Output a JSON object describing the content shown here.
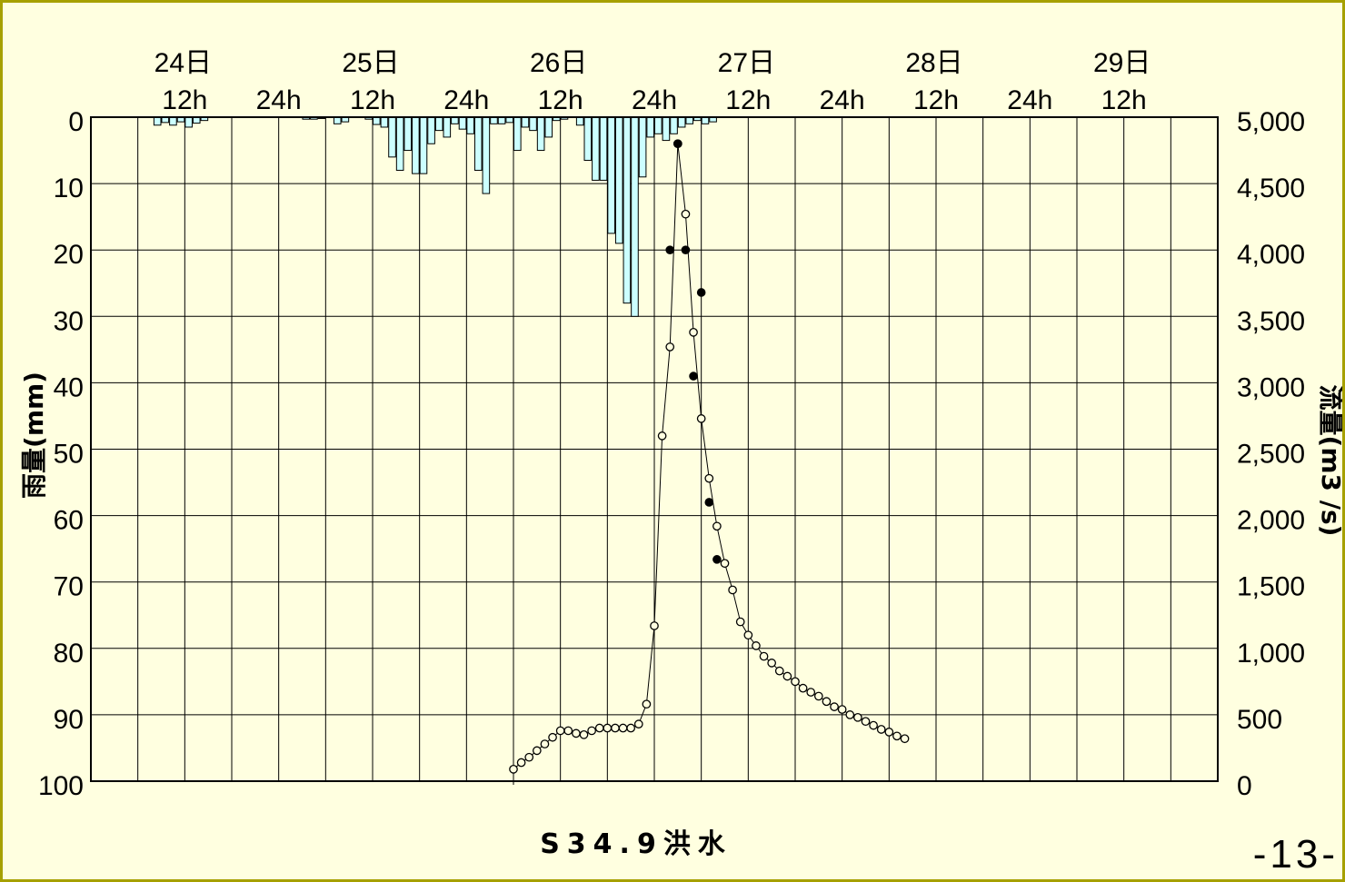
{
  "chart_data": {
    "type": "bar+line+scatter",
    "title": "",
    "caption": "S34.9洪水",
    "page_number": "-13-",
    "left_axis": {
      "label": "雨量(mm)",
      "ticks": [
        "0",
        "10",
        "20",
        "30",
        "40",
        "50",
        "60",
        "70",
        "80",
        "90",
        "100"
      ],
      "range": [
        0,
        100
      ],
      "inverted": true
    },
    "right_axis": {
      "label": "流量(m3 /s)",
      "ticks": [
        "0",
        "500",
        "1,000",
        "1,500",
        "2,000",
        "2,500",
        "3,000",
        "3,500",
        "4,000",
        "4,500",
        "5,000"
      ],
      "range": [
        0,
        5000
      ]
    },
    "x_axis": {
      "unit": "hour",
      "range": [
        0,
        144
      ],
      "day_labels": [
        {
          "label": "24日",
          "hour": 12
        },
        {
          "label": "25日",
          "hour": 36
        },
        {
          "label": "26日",
          "hour": 60
        },
        {
          "label": "27日",
          "hour": 84
        },
        {
          "label": "28日",
          "hour": 108
        },
        {
          "label": "29日",
          "hour": 132
        }
      ],
      "hour_labels": [
        {
          "label": "12h",
          "hour": 12
        },
        {
          "label": "24h",
          "hour": 24
        },
        {
          "label": "12h",
          "hour": 36
        },
        {
          "label": "24h",
          "hour": 48
        },
        {
          "label": "12h",
          "hour": 60
        },
        {
          "label": "24h",
          "hour": 72
        },
        {
          "label": "12h",
          "hour": 84
        },
        {
          "label": "24h",
          "hour": 96
        },
        {
          "label": "12h",
          "hour": 108
        },
        {
          "label": "24h",
          "hour": 120
        },
        {
          "label": "12h",
          "hour": 132
        }
      ]
    },
    "grid": true,
    "rainfall": {
      "color": "#CCFFFF",
      "bars": [
        {
          "hour": 9,
          "value": 1.2
        },
        {
          "hour": 10,
          "value": 0.8
        },
        {
          "hour": 11,
          "value": 1.2
        },
        {
          "hour": 12,
          "value": 0.7
        },
        {
          "hour": 13,
          "value": 1.5
        },
        {
          "hour": 14,
          "value": 0.9
        },
        {
          "hour": 15,
          "value": 0.5
        },
        {
          "hour": 28,
          "value": 0.3
        },
        {
          "hour": 29,
          "value": 0.3
        },
        {
          "hour": 30,
          "value": 0.2
        },
        {
          "hour": 32,
          "value": 1.0
        },
        {
          "hour": 33,
          "value": 0.7
        },
        {
          "hour": 36,
          "value": 0.3
        },
        {
          "hour": 37,
          "value": 1.1
        },
        {
          "hour": 38,
          "value": 1.5
        },
        {
          "hour": 39,
          "value": 6.0
        },
        {
          "hour": 40,
          "value": 8.0
        },
        {
          "hour": 41,
          "value": 5.0
        },
        {
          "hour": 42,
          "value": 8.5
        },
        {
          "hour": 43,
          "value": 8.5
        },
        {
          "hour": 44,
          "value": 4.0
        },
        {
          "hour": 45,
          "value": 2.0
        },
        {
          "hour": 46,
          "value": 3.0
        },
        {
          "hour": 47,
          "value": 1.0
        },
        {
          "hour": 48,
          "value": 1.8
        },
        {
          "hour": 49,
          "value": 2.5
        },
        {
          "hour": 50,
          "value": 8.0
        },
        {
          "hour": 51,
          "value": 11.5
        },
        {
          "hour": 52,
          "value": 1.0
        },
        {
          "hour": 53,
          "value": 1.0
        },
        {
          "hour": 54,
          "value": 0.8
        },
        {
          "hour": 55,
          "value": 5.0
        },
        {
          "hour": 56,
          "value": 1.5
        },
        {
          "hour": 57,
          "value": 2.0
        },
        {
          "hour": 58,
          "value": 5.0
        },
        {
          "hour": 59,
          "value": 3.0
        },
        {
          "hour": 60,
          "value": 0.5
        },
        {
          "hour": 61,
          "value": 0.3
        },
        {
          "hour": 63,
          "value": 1.2
        },
        {
          "hour": 64,
          "value": 6.5
        },
        {
          "hour": 65,
          "value": 9.5
        },
        {
          "hour": 66,
          "value": 9.5
        },
        {
          "hour": 67,
          "value": 17.5
        },
        {
          "hour": 68,
          "value": 19.0
        },
        {
          "hour": 69,
          "value": 28.0
        },
        {
          "hour": 70,
          "value": 30.0
        },
        {
          "hour": 71,
          "value": 9.0
        },
        {
          "hour": 72,
          "value": 3.0
        },
        {
          "hour": 73,
          "value": 2.5
        },
        {
          "hour": 74,
          "value": 3.5
        },
        {
          "hour": 75,
          "value": 2.5
        },
        {
          "hour": 76,
          "value": 1.5
        },
        {
          "hour": 77,
          "value": 1.0
        },
        {
          "hour": 78,
          "value": 0.5
        },
        {
          "hour": 79,
          "value": 1.0
        },
        {
          "hour": 80,
          "value": 0.7
        }
      ]
    },
    "discharge_calculated": {
      "marker": "open-circle",
      "points": [
        [
          54,
          90
        ],
        [
          55,
          140
        ],
        [
          56,
          180
        ],
        [
          57,
          230
        ],
        [
          58,
          280
        ],
        [
          59,
          330
        ],
        [
          60,
          380
        ],
        [
          61,
          380
        ],
        [
          62,
          360
        ],
        [
          63,
          350
        ],
        [
          64,
          380
        ],
        [
          65,
          400
        ],
        [
          66,
          400
        ],
        [
          67,
          400
        ],
        [
          68,
          400
        ],
        [
          69,
          400
        ],
        [
          70,
          430
        ],
        [
          71,
          580
        ],
        [
          72,
          1170
        ],
        [
          73,
          2600
        ],
        [
          74,
          3270
        ],
        [
          75,
          4800
        ],
        [
          76,
          4270
        ],
        [
          77,
          3380
        ],
        [
          78,
          2730
        ],
        [
          79,
          2280
        ],
        [
          80,
          1920
        ],
        [
          81,
          1640
        ],
        [
          82,
          1440
        ],
        [
          83,
          1200
        ],
        [
          84,
          1100
        ],
        [
          85,
          1020
        ],
        [
          86,
          940
        ],
        [
          87,
          890
        ],
        [
          88,
          830
        ],
        [
          89,
          790
        ],
        [
          90,
          750
        ],
        [
          91,
          700
        ],
        [
          92,
          670
        ],
        [
          93,
          640
        ],
        [
          94,
          600
        ],
        [
          95,
          560
        ],
        [
          96,
          540
        ],
        [
          97,
          500
        ],
        [
          98,
          480
        ],
        [
          99,
          450
        ],
        [
          100,
          420
        ],
        [
          101,
          390
        ],
        [
          102,
          370
        ],
        [
          103,
          340
        ],
        [
          104,
          320
        ]
      ]
    },
    "discharge_observed": {
      "marker": "filled-circle",
      "points": [
        [
          74,
          4000
        ],
        [
          75,
          4800
        ],
        [
          76,
          4000
        ],
        [
          78,
          3680
        ],
        [
          77,
          3050
        ],
        [
          79,
          2100
        ],
        [
          80,
          1670
        ]
      ]
    }
  }
}
